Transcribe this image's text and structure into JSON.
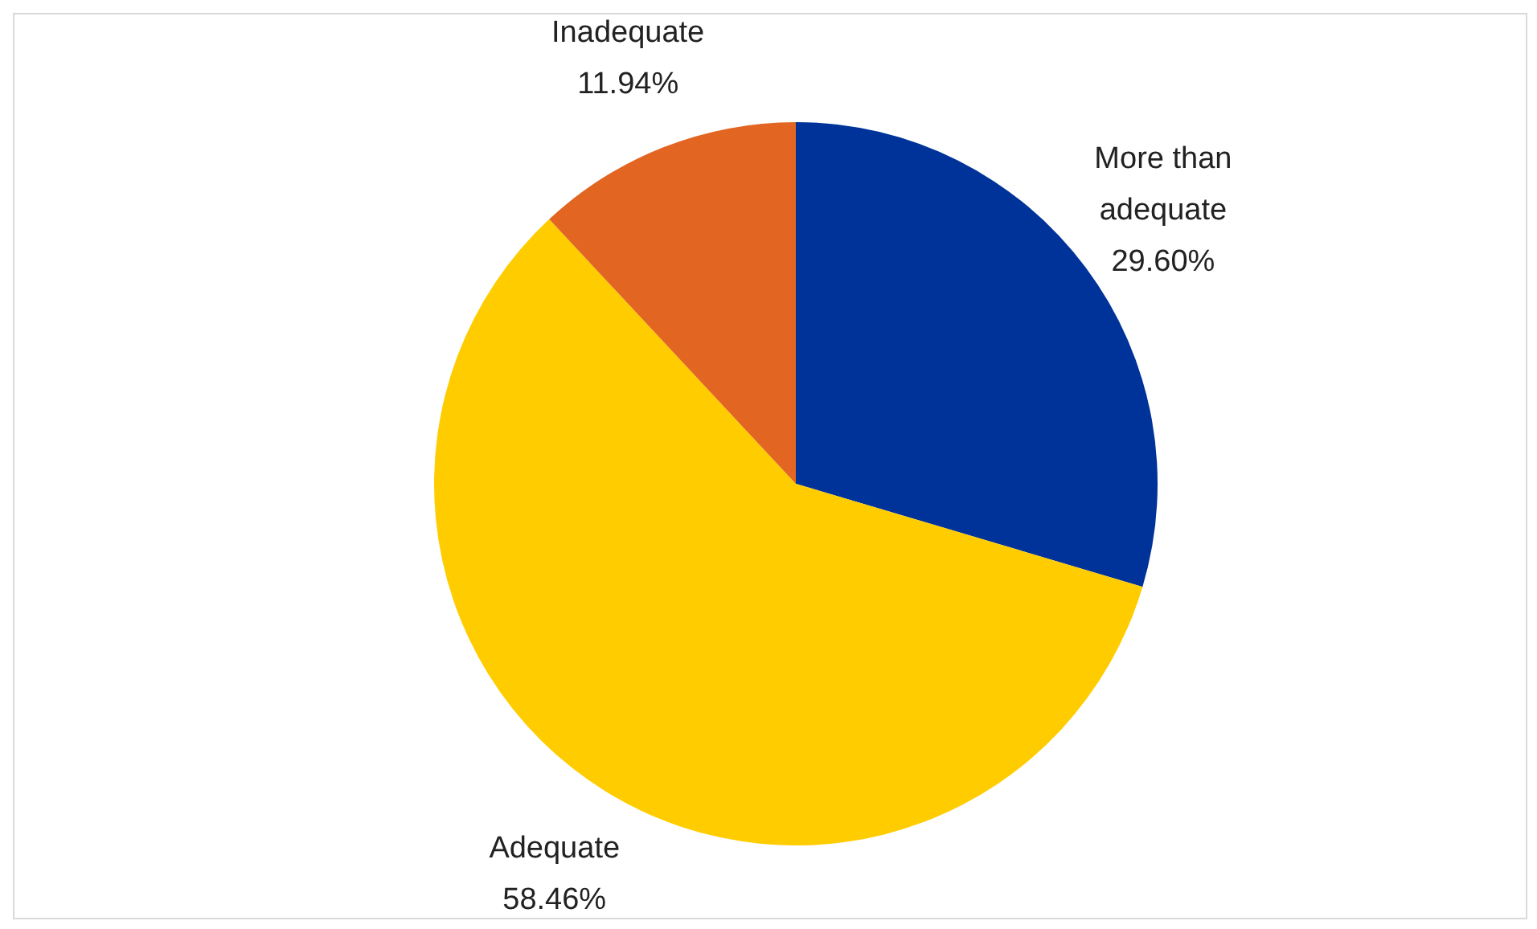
{
  "chart_data": {
    "type": "pie",
    "categories": [
      "More than adequate",
      "Adequate",
      "Inadequate"
    ],
    "values": [
      29.6,
      58.46,
      11.94
    ],
    "value_labels": [
      "29.60%",
      "58.46%",
      "11.94%"
    ],
    "colors": [
      "#003399",
      "#ffcc00",
      "#e26522"
    ],
    "legend": false
  }
}
